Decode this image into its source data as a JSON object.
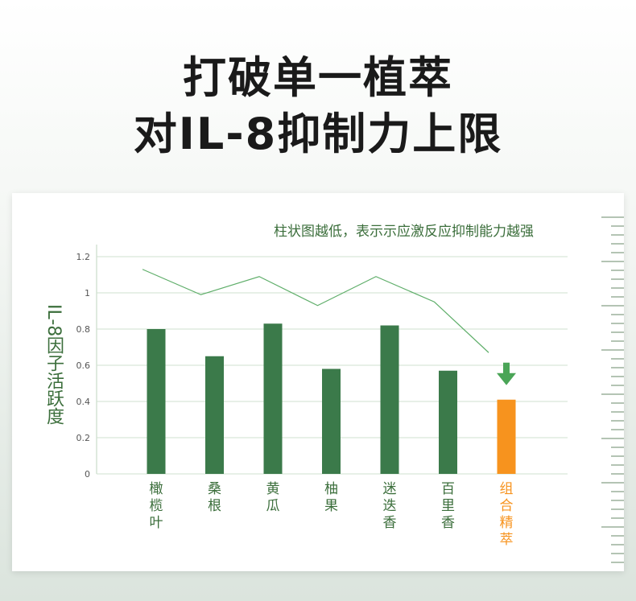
{
  "headline": {
    "line1": "打破单一植萃",
    "line2": "对IL-8抑制力上限"
  },
  "note": "柱状图越低，表示示应激反应抑制能力越强",
  "colors": {
    "bar": "#3b7a4a",
    "highlight": "#f7931e",
    "line": "#5fae6a",
    "text_green": "#3b6e3b",
    "arrow": "#4aa557"
  },
  "chart_data": {
    "type": "bar",
    "ylabel": "IL-8因子活跃度",
    "ylim": [
      0,
      1.2
    ],
    "yticks": [
      "0",
      "0.2",
      "0.4",
      "0.6",
      "0.8",
      "1",
      "1.2"
    ],
    "categories": [
      "橄榄叶",
      "桑根",
      "黄瓜",
      "柚果",
      "迷迭香",
      "百里香",
      "组合精萃"
    ],
    "values": [
      0.8,
      0.65,
      0.83,
      0.58,
      0.82,
      0.57,
      0.41
    ],
    "line_values": [
      1.13,
      0.99,
      1.09,
      0.93,
      1.09,
      0.95,
      0.67
    ],
    "highlight_index": 6
  }
}
